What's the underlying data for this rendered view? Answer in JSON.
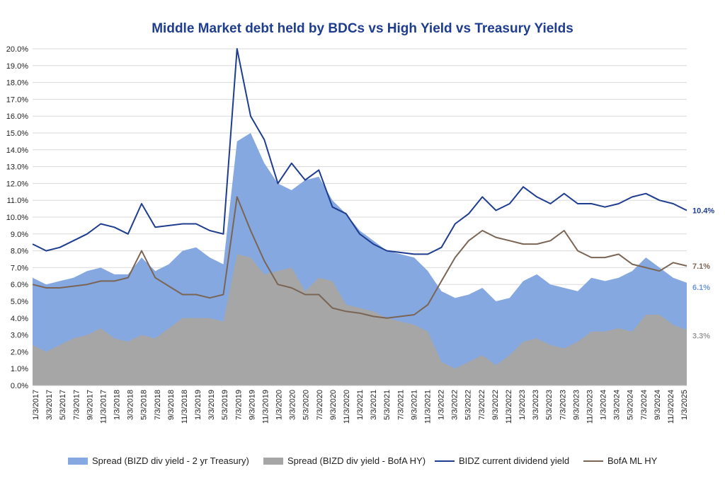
{
  "chart_data": {
    "type": "line",
    "title": "Middle Market debt held by BDCs vs High Yield vs Treasury Yields",
    "xlabel": "",
    "ylabel": "",
    "ylim": [
      0,
      20
    ],
    "y_ticks": [
      "0.0%",
      "1.0%",
      "2.0%",
      "3.0%",
      "4.0%",
      "5.0%",
      "6.0%",
      "7.0%",
      "8.0%",
      "9.0%",
      "10.0%",
      "11.0%",
      "12.0%",
      "13.0%",
      "14.0%",
      "15.0%",
      "16.0%",
      "17.0%",
      "18.0%",
      "19.0%",
      "20.0%"
    ],
    "x_ticks": [
      "1/3/2017",
      "3/3/2017",
      "5/3/2017",
      "7/3/2017",
      "9/3/2017",
      "11/3/2017",
      "1/3/2018",
      "3/3/2018",
      "5/3/2018",
      "7/3/2018",
      "9/3/2018",
      "11/3/2018",
      "1/3/2019",
      "3/3/2019",
      "5/3/2019",
      "7/3/2019",
      "9/3/2019",
      "11/3/2019",
      "1/3/2020",
      "3/3/2020",
      "5/3/2020",
      "7/3/2020",
      "9/3/2020",
      "11/3/2020",
      "1/3/2021",
      "3/3/2021",
      "5/3/2021",
      "7/3/2021",
      "9/3/2021",
      "11/3/2021",
      "1/3/2022",
      "3/3/2022",
      "5/3/2022",
      "7/3/2022",
      "9/3/2022",
      "11/3/2022",
      "1/3/2023",
      "3/3/2023",
      "5/3/2023",
      "7/3/2023",
      "9/3/2023",
      "11/3/2023",
      "1/3/2024",
      "3/3/2024",
      "5/3/2024",
      "7/3/2024",
      "9/3/2024",
      "11/3/2024",
      "1/3/2025"
    ],
    "grid": true,
    "legend_position": "bottom",
    "x": [
      "2017-01",
      "2017-04",
      "2017-07",
      "2017-10",
      "2018-01",
      "2018-04",
      "2018-07",
      "2018-10",
      "2018-12",
      "2019-01",
      "2019-04",
      "2019-07",
      "2019-10",
      "2020-01",
      "2020-02",
      "2020-03",
      "2020-04",
      "2020-05",
      "2020-06",
      "2020-07",
      "2020-09",
      "2020-10",
      "2020-12",
      "2021-02",
      "2021-04",
      "2021-06",
      "2021-08",
      "2021-10",
      "2021-12",
      "2022-02",
      "2022-04",
      "2022-06",
      "2022-08",
      "2022-10",
      "2022-12",
      "2023-02",
      "2023-04",
      "2023-06",
      "2023-08",
      "2023-10",
      "2023-12",
      "2024-02",
      "2024-04",
      "2024-06",
      "2024-08",
      "2024-10",
      "2024-12",
      "2025-02",
      "2025-03"
    ],
    "series": [
      {
        "name": "Spread (BIZD div yield - 2 yr Treasury)",
        "type": "area",
        "color": "#86a8e0",
        "values": [
          6.4,
          6.0,
          6.2,
          6.4,
          6.8,
          7.0,
          6.6,
          6.6,
          7.6,
          6.8,
          7.2,
          8.0,
          8.2,
          7.6,
          7.2,
          14.5,
          15.0,
          13.2,
          12.0,
          11.6,
          12.2,
          12.4,
          11.0,
          10.2,
          9.2,
          8.6,
          8.0,
          7.8,
          7.6,
          6.8,
          5.6,
          5.2,
          5.4,
          5.8,
          5.0,
          5.2,
          6.2,
          6.6,
          6.0,
          5.8,
          5.6,
          6.4,
          6.2,
          6.4,
          6.8,
          7.6,
          7.0,
          6.4,
          6.1
        ]
      },
      {
        "name": "Spread (BIZD div yield - BofA HY)",
        "type": "area",
        "color": "#a6a6a6",
        "values": [
          2.4,
          2.0,
          2.4,
          2.8,
          3.0,
          3.4,
          2.8,
          2.6,
          3.0,
          2.8,
          3.4,
          4.0,
          4.0,
          4.0,
          3.8,
          7.8,
          7.6,
          6.6,
          6.8,
          7.0,
          5.6,
          6.4,
          6.2,
          4.8,
          4.6,
          4.4,
          4.0,
          3.8,
          3.6,
          3.2,
          1.4,
          1.0,
          1.4,
          1.8,
          1.2,
          1.8,
          2.6,
          2.8,
          2.4,
          2.2,
          2.6,
          3.2,
          3.2,
          3.4,
          3.2,
          4.2,
          4.2,
          3.6,
          3.3
        ]
      },
      {
        "name": "BIDZ current dividend yield",
        "type": "line",
        "color": "#1f3d8f",
        "values": [
          8.4,
          8.0,
          8.2,
          8.6,
          9.0,
          9.6,
          9.4,
          9.0,
          10.8,
          9.4,
          9.5,
          9.6,
          9.6,
          9.2,
          9.0,
          20.0,
          16.0,
          14.6,
          12.0,
          13.2,
          12.2,
          12.8,
          10.6,
          10.2,
          9.0,
          8.4,
          8.0,
          7.9,
          7.8,
          7.8,
          8.2,
          9.6,
          10.2,
          11.2,
          10.4,
          10.8,
          11.8,
          11.2,
          10.8,
          11.4,
          10.8,
          10.8,
          10.6,
          10.8,
          11.2,
          11.4,
          11.0,
          10.8,
          10.4
        ]
      },
      {
        "name": "BofA ML HY",
        "type": "line",
        "color": "#7a6555",
        "values": [
          6.0,
          5.8,
          5.8,
          5.9,
          6.0,
          6.2,
          6.2,
          6.4,
          8.0,
          6.4,
          5.9,
          5.4,
          5.4,
          5.2,
          5.4,
          11.2,
          9.2,
          7.4,
          6.0,
          5.8,
          5.4,
          5.4,
          4.6,
          4.4,
          4.3,
          4.1,
          4.0,
          4.1,
          4.2,
          4.8,
          6.2,
          7.6,
          8.6,
          9.2,
          8.8,
          8.6,
          8.4,
          8.4,
          8.6,
          9.2,
          8.0,
          7.6,
          7.6,
          7.8,
          7.2,
          7.0,
          6.8,
          7.3,
          7.1
        ]
      }
    ],
    "end_labels": [
      "10.4%",
      "7.1%",
      "6.1%",
      "3.3%"
    ]
  }
}
